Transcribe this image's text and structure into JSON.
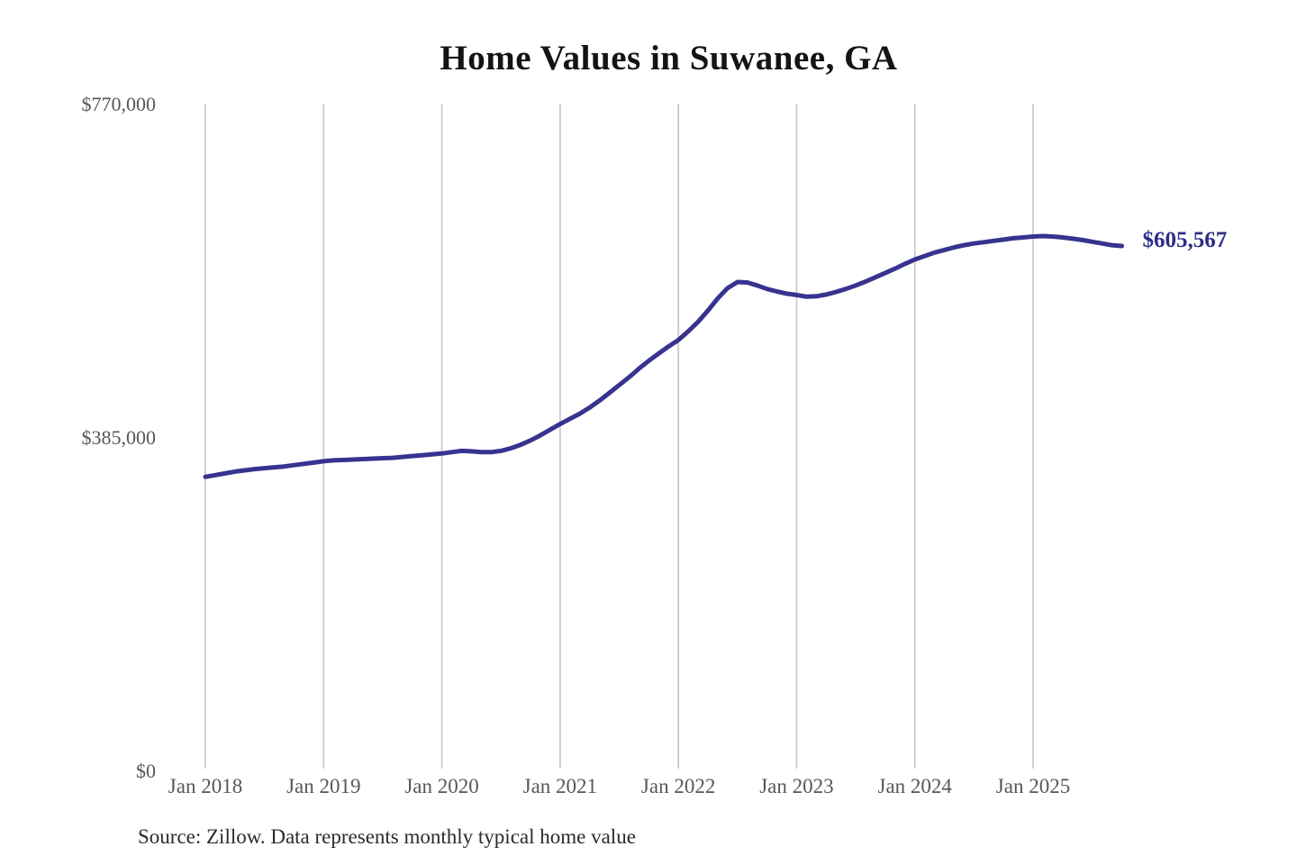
{
  "chart": {
    "title": "Home Values in Suwanee, GA",
    "source": "Source: Zillow. Data represents monthly typical home value"
  },
  "chart_data": {
    "type": "line",
    "title": "Home Values in Suwanee, GA",
    "subtitle": "",
    "xlabel": "",
    "ylabel": "",
    "legend": "none",
    "grid": "vertical-only",
    "ylim": [
      0,
      770000
    ],
    "y_ticks": [
      {
        "label": "$0",
        "value": 0
      },
      {
        "label": "$385,000",
        "value": 385000
      },
      {
        "label": "$770,000",
        "value": 770000
      }
    ],
    "x_tick_labels": [
      "Jan 2018",
      "Jan 2019",
      "Jan 2020",
      "Jan 2021",
      "Jan 2022",
      "Jan 2023",
      "Jan 2024",
      "Jan 2025"
    ],
    "x_start_month": "2018-01",
    "x_end_month": "2025-10",
    "x_interval": "month",
    "series": [
      {
        "name": "Typical home value",
        "monthly_values": [
          339000,
          341000,
          343000,
          345000,
          346500,
          348000,
          349000,
          350000,
          351000,
          352500,
          354000,
          355500,
          357000,
          358000,
          358500,
          359000,
          359500,
          360000,
          360500,
          361000,
          362000,
          363000,
          364000,
          365000,
          366000,
          367500,
          369000,
          368500,
          367500,
          367500,
          369000,
          372000,
          376000,
          381000,
          387000,
          393500,
          400000,
          406000,
          412000,
          419000,
          427000,
          436000,
          445000,
          454000,
          464000,
          473000,
          481500,
          489500,
          497000,
          507000,
          518000,
          531000,
          545000,
          557000,
          564000,
          563500,
          560000,
          556000,
          553000,
          550500,
          549000,
          547000,
          547500,
          549500,
          552500,
          556000,
          560000,
          564500,
          569500,
          574500,
          579500,
          585000,
          590000,
          594000,
          598000,
          601000,
          604000,
          606500,
          608500,
          610000,
          611500,
          613000,
          614500,
          615500,
          616500,
          617000,
          616500,
          615500,
          614000,
          612500,
          610500,
          608500,
          606500,
          605567
        ]
      }
    ],
    "end_label": "$605,567",
    "final_value": 605567,
    "colors": {
      "line": "#37338f",
      "end_label": "#2e2c87",
      "gridline": "#c9c9c9",
      "tick_text": "#575757",
      "title_text": "#141414",
      "background": "#ffffff"
    },
    "source": "Source: Zillow. Data represents monthly typical home value"
  }
}
